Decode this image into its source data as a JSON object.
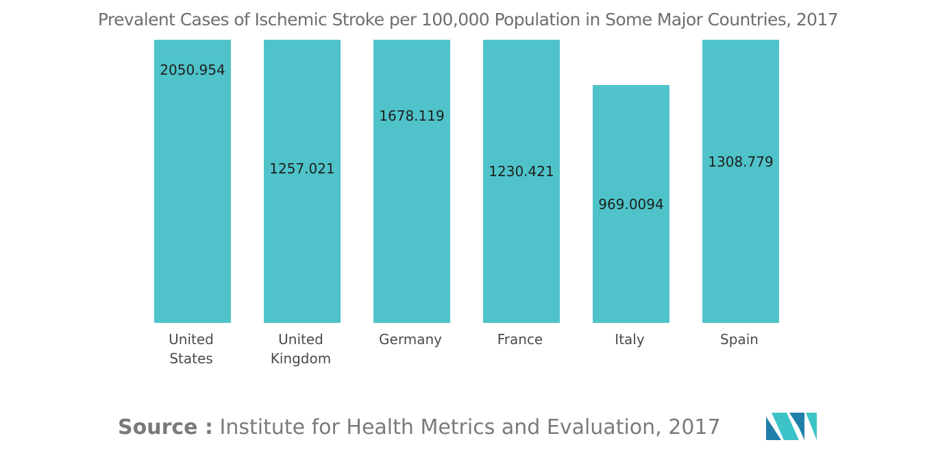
{
  "title": "Prevalent Cases of Ischemic Stroke per 100,000 Population in Some Major Countries, 2017",
  "source": {
    "label": "Source :",
    "text": "Institute for Health Metrics and Evaluation, 2017"
  },
  "logo": {
    "icon": "mordor-intelligence-logo-icon",
    "colors": [
      "#1f7fa8",
      "#3cc3c7"
    ]
  },
  "colors": {
    "bar": "#4fc3c9",
    "title": "#6e6e6e",
    "source": "#7a7a7a"
  },
  "chart_data": {
    "type": "bar",
    "title": "Prevalent Cases of Ischemic Stroke per 100,000 Population in Some Major Countries, 2017",
    "categories": [
      [
        "United",
        "States"
      ],
      [
        "United",
        "Kingdom"
      ],
      [
        "Germany"
      ],
      [
        "France"
      ],
      [
        "Italy"
      ],
      [
        "Spain"
      ]
    ],
    "values": [
      2050.954,
      1257.021,
      1678.119,
      1230.421,
      969.0094,
      1308.779
    ],
    "value_labels": [
      "2050.954",
      "1257.021",
      "1678.119",
      "1230.421",
      "969.0094",
      "1308.779"
    ],
    "xlabel": "",
    "ylabel": "",
    "grid": false,
    "legend": "none"
  }
}
